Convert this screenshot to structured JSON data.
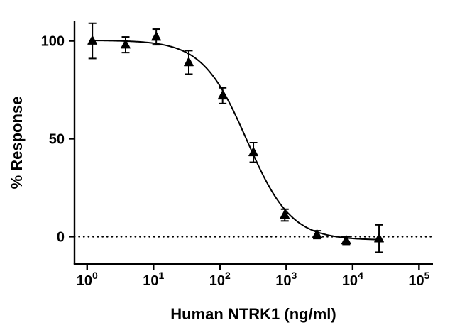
{
  "chart_data": {
    "type": "scatter",
    "title": "",
    "xlabel": "Human NTRK1 (ng/ml)",
    "ylabel": "% Response",
    "x_scale": "log10",
    "xlim_log": [
      -0.19,
      5.21
    ],
    "ylim": [
      -14,
      110
    ],
    "grid": false,
    "legend": "none",
    "axis_color": "#000000",
    "x_ticks": [
      {
        "base": "10",
        "sup": "0",
        "exp": 0
      },
      {
        "base": "10",
        "sup": "1",
        "exp": 1
      },
      {
        "base": "10",
        "sup": "2",
        "exp": 2
      },
      {
        "base": "10",
        "sup": "3",
        "exp": 3
      },
      {
        "base": "10",
        "sup": "4",
        "exp": 4
      },
      {
        "base": "10",
        "sup": "5",
        "exp": 5
      }
    ],
    "y_ticks": [
      {
        "value": 0,
        "label": "0"
      },
      {
        "value": 50,
        "label": "50"
      },
      {
        "value": 100,
        "label": "100"
      }
    ],
    "baseline": {
      "y": 0,
      "style": "dotted"
    },
    "series": [
      {
        "name": "Human NTRK1",
        "marker": "triangle-up",
        "color": "#000000",
        "points": [
          {
            "x": 1.2,
            "y": 100,
            "err": 9
          },
          {
            "x": 3.8,
            "y": 98,
            "err": 4
          },
          {
            "x": 11,
            "y": 102,
            "err": 4
          },
          {
            "x": 34,
            "y": 89,
            "err": 6
          },
          {
            "x": 110,
            "y": 72,
            "err": 4
          },
          {
            "x": 320,
            "y": 43,
            "err": 5
          },
          {
            "x": 950,
            "y": 11,
            "err": 3
          },
          {
            "x": 2900,
            "y": 1,
            "err": 2
          },
          {
            "x": 8000,
            "y": -2,
            "err": 2
          },
          {
            "x": 25000,
            "y": -1,
            "err": 7
          }
        ]
      }
    ],
    "fit": {
      "model": "4PL",
      "top": 100.3,
      "bottom": -1.8,
      "ic50": 255,
      "hill": 1.3
    }
  }
}
